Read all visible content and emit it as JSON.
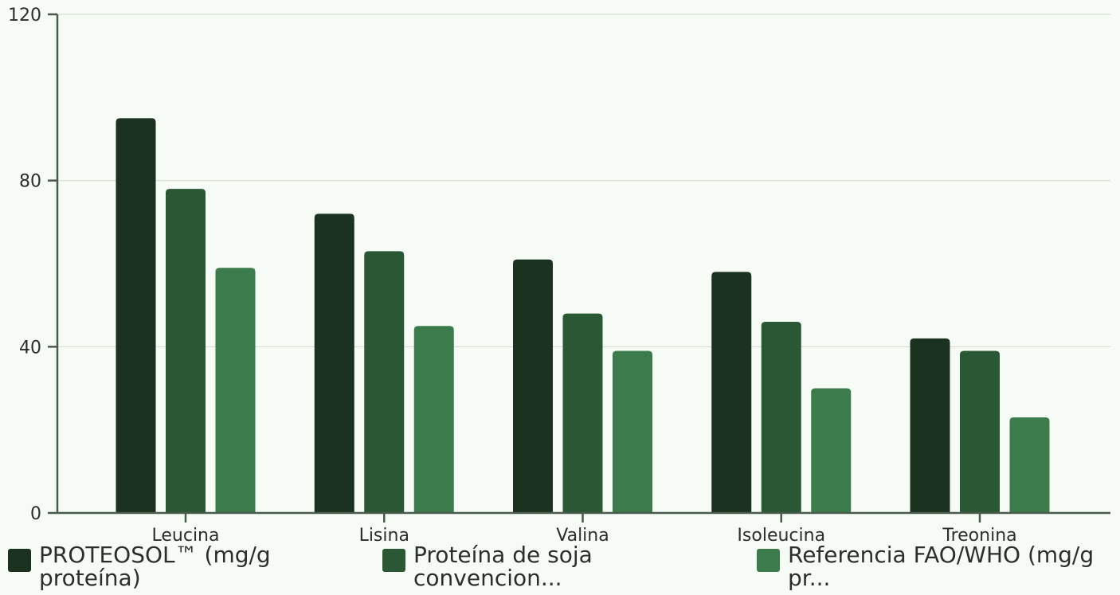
{
  "chart_data": {
    "type": "bar",
    "categories": [
      "Leucina",
      "Lisina",
      "Valina",
      "Isoleucina",
      "Treonina"
    ],
    "series": [
      {
        "name": "PROTEOSOL™ (mg/g proteína)",
        "color": "#1b3220",
        "values": [
          95,
          72,
          61,
          58,
          42
        ]
      },
      {
        "name": "Proteína de soja convencion...",
        "color": "#2a5835",
        "values": [
          78,
          63,
          48,
          46,
          39
        ]
      },
      {
        "name": "Referencia FAO/WHO (mg/g pr...",
        "color": "#3c7c4c",
        "values": [
          59,
          45,
          39,
          30,
          23
        ]
      }
    ],
    "y_ticks": [
      "0",
      "40",
      "80",
      "120"
    ],
    "ylim": [
      0,
      120
    ],
    "grid": true,
    "legend_position": "bottom"
  },
  "legend": [
    {
      "label": "PROTEOSOL™ (mg/g\nproteína)",
      "color": "#1b3220"
    },
    {
      "label": "Proteína de soja\nconvencion...",
      "color": "#2a5835"
    },
    {
      "label": "Referencia FAO/WHO (mg/g\npr...",
      "color": "#3c7c4c"
    }
  ],
  "colors": {
    "background": "#f6fcf5",
    "axis": "#4a5a4c",
    "grid": "#d4ddd3"
  }
}
